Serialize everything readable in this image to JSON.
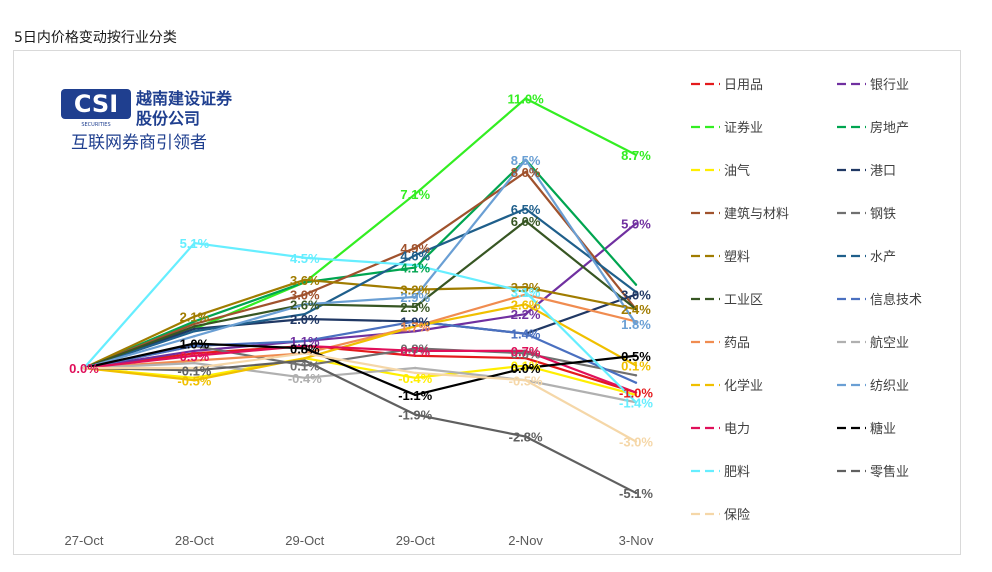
{
  "page": {
    "title": "5日内价格变动按行业分类"
  },
  "logo": {
    "brand": "CSI",
    "company_line1": "越南建设证券",
    "company_line2": "股份公司",
    "tagline": "互联网券商引领者",
    "sub": "SECURITIES"
  },
  "chart_data": {
    "type": "line",
    "title": "5日内价格变动按行业分类",
    "xlabel": "",
    "ylabel": "",
    "categories": [
      "27-Oct",
      "28-Oct",
      "29-Oct",
      "29-Oct",
      "2-Nov",
      "3-Nov"
    ],
    "ylim": [
      -6,
      12
    ],
    "grid": false,
    "legend_position": "right",
    "series": [
      {
        "name": "日用品",
        "color": "#e41a1c",
        "values": [
          0.0,
          0.6,
          0.9,
          0.5,
          0.4,
          -1.0
        ],
        "labels": [
          "",
          "",
          "",
          "",
          "",
          "-1.0%"
        ]
      },
      {
        "name": "银行业",
        "color": "#7030a0",
        "values": [
          0.0,
          0.7,
          1.1,
          1.5,
          2.2,
          5.9
        ],
        "labels": [
          "",
          "",
          "1.1%",
          "",
          "2.2%",
          "5.9%"
        ]
      },
      {
        "name": "证券业",
        "color": "#33ee22",
        "values": [
          0.0,
          1.6,
          3.5,
          7.1,
          11.0,
          8.7
        ],
        "labels": [
          "",
          "",
          "",
          "7.1%",
          "11.0%",
          "8.7%"
        ]
      },
      {
        "name": "房地产",
        "color": "#00a550",
        "values": [
          0.0,
          1.9,
          3.5,
          4.1,
          8.5,
          3.4
        ],
        "labels": [
          "",
          "",
          "",
          "4.1%",
          "",
          ""
        ]
      },
      {
        "name": "油气",
        "color": "#ffee00",
        "values": [
          0.0,
          -0.4,
          0.4,
          -0.4,
          0.1,
          -1.1
        ],
        "labels": [
          "",
          "",
          "",
          "-0.4%",
          "0.1%",
          ""
        ]
      },
      {
        "name": "港口",
        "color": "#203864",
        "values": [
          0.0,
          1.6,
          2.0,
          1.9,
          1.4,
          3.0
        ],
        "labels": [
          "",
          "",
          "2.0%",
          "1.9%",
          "",
          "3.0%"
        ]
      },
      {
        "name": "建筑与材料",
        "color": "#a0522d",
        "values": [
          0.0,
          1.8,
          3.0,
          4.9,
          8.0,
          2.4
        ],
        "labels": [
          "",
          "",
          "3.0%",
          "4.9%",
          "8.0%",
          ""
        ]
      },
      {
        "name": "钢铁",
        "color": "#707070",
        "values": [
          0.0,
          0.9,
          0.1,
          0.8,
          0.6,
          -0.3
        ],
        "labels": [
          "",
          "",
          "0.1%",
          "0.8%",
          "0.6%",
          ""
        ]
      },
      {
        "name": "塑料",
        "color": "#a07c00",
        "values": [
          0.0,
          2.1,
          3.6,
          3.2,
          3.3,
          2.4
        ],
        "labels": [
          "",
          "2.1%",
          "3.6%",
          "3.2%",
          "3.3%",
          "2.4%"
        ]
      },
      {
        "name": "水产",
        "color": "#1f5f8b",
        "values": [
          0.0,
          1.5,
          2.2,
          4.6,
          6.5,
          3.1
        ],
        "labels": [
          "",
          "",
          "",
          "4.6%",
          "6.5%",
          ""
        ]
      },
      {
        "name": "工业区",
        "color": "#375623",
        "values": [
          0.0,
          1.7,
          2.6,
          2.5,
          6.0,
          2.4
        ],
        "labels": [
          "",
          "",
          "2.6%",
          "2.5%",
          "6.0%",
          ""
        ]
      },
      {
        "name": "信息技术",
        "color": "#4a70c0",
        "values": [
          0.0,
          0.9,
          1.1,
          1.9,
          1.4,
          -0.6
        ],
        "labels": [
          "",
          "",
          "",
          "",
          "1.4%",
          ""
        ]
      },
      {
        "name": "药品",
        "color": "#f08c50",
        "values": [
          0.0,
          0.3,
          0.6,
          1.7,
          3.0,
          1.9
        ],
        "labels": [
          "",
          "",
          "",
          "1.7%",
          "",
          ""
        ]
      },
      {
        "name": "航空业",
        "color": "#b0b0b0",
        "values": [
          0.0,
          0.2,
          -0.4,
          0.0,
          -0.5,
          -1.4
        ],
        "labels": [
          "",
          "",
          "-0.4%",
          "",
          "",
          ""
        ]
      },
      {
        "name": "化学业",
        "color": "#f0c000",
        "values": [
          0.0,
          -0.5,
          0.4,
          1.7,
          2.6,
          0.1
        ],
        "labels": [
          "",
          "-0.5%",
          "",
          "",
          "2.6%",
          "0.1%"
        ]
      },
      {
        "name": "纺织业",
        "color": "#6a9fd4",
        "values": [
          0.0,
          1.3,
          2.6,
          2.9,
          8.5,
          1.8
        ],
        "labels": [
          "",
          "",
          "",
          "2.9%",
          "8.5%",
          "1.8%"
        ]
      },
      {
        "name": "电力",
        "color": "#e0105a",
        "values": [
          0.0,
          0.5,
          0.9,
          0.7,
          0.7,
          -1.0
        ],
        "labels": [
          "0.0%",
          "0.5%",
          "",
          "0.7%",
          "0.7%",
          ""
        ]
      },
      {
        "name": "糖业",
        "color": "#000000",
        "values": [
          0.0,
          1.0,
          0.8,
          -1.1,
          0.0,
          0.5
        ],
        "labels": [
          "",
          "1.0%",
          "0.8%",
          "-1.1%",
          "0.0%",
          "0.5%"
        ]
      },
      {
        "name": "肥料",
        "color": "#66eeff",
        "values": [
          0.0,
          5.1,
          4.5,
          4.2,
          3.1,
          -1.4
        ],
        "labels": [
          "",
          "5.1%",
          "4.5%",
          "",
          "3.1%",
          "-1.4%"
        ]
      },
      {
        "name": "零售业",
        "color": "#606060",
        "values": [
          0.0,
          -0.1,
          0.3,
          -1.9,
          -2.8,
          -5.1
        ],
        "labels": [
          "",
          "-0.1%",
          "",
          "-1.9%",
          "-2.8%",
          "-5.1%"
        ]
      },
      {
        "name": "保险",
        "color": "#f5d7a8",
        "values": [
          0.0,
          0.0,
          0.6,
          -0.2,
          -0.5,
          -3.0
        ],
        "labels": [
          "",
          "",
          "",
          "",
          "-0.5%",
          "-3.0%"
        ]
      }
    ]
  }
}
